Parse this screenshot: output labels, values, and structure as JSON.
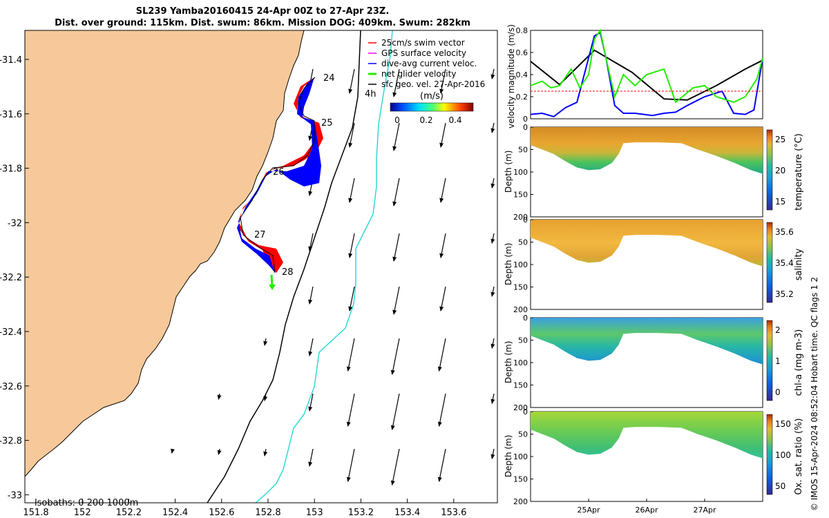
{
  "header": {
    "title_line1": "SL239 Yamba20160415 24-Apr 00Z to 27-Apr 23Z.",
    "title_line2": "Dist. over ground: 115km. Dist. swum: 86km. Mission DOG: 409km. Swum: 282km"
  },
  "copyright": "© IMOS 15-Apr-2024 08:52:04 Hobart time. QC flags 1  2",
  "colors": {
    "land": "#f7c99a",
    "track_red": "#ff0000",
    "track_blue": "#0000ff",
    "green": "#22ee00",
    "iso200": "#000000",
    "iso1000": "#00e0e0"
  },
  "chart_data": [
    {
      "type": "map",
      "xticks": [
        "151.8",
        "152",
        "152.2",
        "152.4",
        "152.6",
        "152.8",
        "153",
        "153.2",
        "153.4",
        "153.6"
      ],
      "yticks": [
        "-31.4",
        "-31.6",
        "-31.8",
        "-32",
        "-32.2",
        "-32.4",
        "-32.6",
        "-32.8",
        "-33"
      ],
      "day_labels": [
        "24",
        "25",
        "26",
        "27",
        "28"
      ],
      "hour_label": "4h",
      "legend": {
        "items": [
          {
            "label": "25cm/s swim vector",
            "color": "#ff0000"
          },
          {
            "label": "GPS surface velocity",
            "color": "#ff00ff"
          },
          {
            "label": "dive-avg current veloc.",
            "color": "#0000ff"
          },
          {
            "label": "net glider velocity",
            "color": "#22ee00"
          },
          {
            "label": "sfc geo. vel. 27-Apr-2016",
            "color": "#000000"
          }
        ],
        "colorbar_title": "(m/s)",
        "colorbar_ticks": [
          "0",
          "0.2",
          "0.4"
        ]
      },
      "isobath_label": "isobaths: 0   200  1000m"
    },
    {
      "type": "line",
      "ylabel": "velocity magnitude (m/s)",
      "ylim": [
        0,
        0.8
      ],
      "yticks": [
        "0",
        "0.2",
        "0.4",
        "0.6",
        "0.8"
      ],
      "xlim": [
        0,
        4
      ],
      "series": [
        {
          "color": "#000000",
          "x": [
            0,
            0.5,
            1.1,
            1.75,
            2.3,
            2.7,
            3.2,
            3.7,
            4.0
          ],
          "values": [
            0.52,
            0.31,
            0.62,
            0.42,
            0.18,
            0.17,
            0.3,
            0.45,
            0.53
          ]
        },
        {
          "color": "#0000ff",
          "x": [
            0,
            0.2,
            0.4,
            0.6,
            0.8,
            1.0,
            1.1,
            1.2,
            1.3,
            1.45,
            1.6,
            1.8,
            2.1,
            2.3,
            2.5,
            2.7,
            3.0,
            3.3,
            3.5,
            3.7,
            3.85,
            4.0
          ],
          "values": [
            0.04,
            0.05,
            0.02,
            0.1,
            0.15,
            0.55,
            0.75,
            0.78,
            0.55,
            0.12,
            0.05,
            0.05,
            0.03,
            0.05,
            0.06,
            0.12,
            0.2,
            0.25,
            0.05,
            0.04,
            0.08,
            0.55
          ]
        },
        {
          "color": "#22ee00",
          "x": [
            0,
            0.2,
            0.35,
            0.5,
            0.7,
            0.85,
            1.0,
            1.1,
            1.2,
            1.3,
            1.45,
            1.6,
            1.8,
            2.0,
            2.3,
            2.5,
            2.8,
            3.0,
            3.2,
            3.5,
            3.7,
            3.9,
            4.0
          ],
          "values": [
            0.3,
            0.34,
            0.28,
            0.3,
            0.45,
            0.28,
            0.4,
            0.72,
            0.8,
            0.55,
            0.2,
            0.4,
            0.3,
            0.4,
            0.45,
            0.15,
            0.28,
            0.3,
            0.2,
            0.15,
            0.2,
            0.36,
            0.55
          ]
        },
        {
          "color": "#ff0000",
          "x": [
            0,
            4.0
          ],
          "values": [
            0.25,
            0.25
          ]
        }
      ]
    },
    {
      "type": "heatmap",
      "ylabel": "Depth (m)",
      "yticks": [
        "0",
        "50",
        "100",
        "150",
        "200"
      ],
      "cbar_label": "temperature (°C)",
      "cbar_ticks": [
        "25",
        "20",
        "15"
      ],
      "colormap": "parula"
    },
    {
      "type": "heatmap",
      "ylabel": "Depth (m)",
      "yticks": [
        "0",
        "50",
        "100",
        "150",
        "200"
      ],
      "cbar_label": "salinity",
      "cbar_ticks": [
        "35.6",
        "35.4",
        "35.2"
      ],
      "colormap": "parula"
    },
    {
      "type": "heatmap",
      "ylabel": "Depth (m)",
      "yticks": [
        "0",
        "50",
        "100",
        "150",
        "200"
      ],
      "cbar_label": "chl-a (mg m-3)",
      "cbar_ticks": [
        "2",
        "1",
        "0"
      ],
      "colormap": "parula"
    },
    {
      "type": "heatmap",
      "ylabel": "Depth (m)",
      "yticks": [
        "0",
        "50",
        "100",
        "150",
        "200"
      ],
      "cbar_label": "Ox. sat. ratio (%)",
      "cbar_ticks": [
        "150",
        "100",
        "50"
      ],
      "colormap": "parula"
    }
  ],
  "time_axis": {
    "ticks": [
      "25Apr",
      "26Apr",
      "27Apr"
    ]
  }
}
